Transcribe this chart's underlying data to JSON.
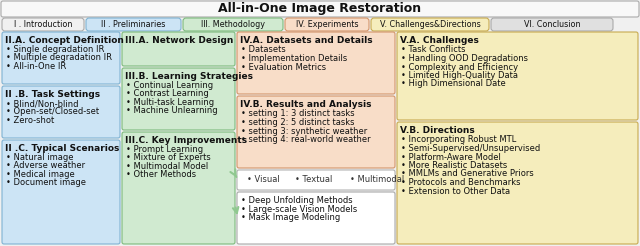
{
  "title": "All-in-One Image Restoration",
  "tabs": [
    {
      "label": "I . Introduction",
      "bg": "#f0f0f0",
      "border": "#aaaaaa"
    },
    {
      "label": "II . Preliminaries",
      "bg": "#cce4f5",
      "border": "#7fb3d3"
    },
    {
      "label": "III. Methodology",
      "bg": "#d0ead0",
      "border": "#7dbb7d"
    },
    {
      "label": "IV. Experiments",
      "bg": "#f8ddc8",
      "border": "#d4956a"
    },
    {
      "label": "V. Challenges&Directions",
      "bg": "#f5edbc",
      "border": "#c8aa50"
    },
    {
      "label": "VI. Conclusion",
      "bg": "#e0e0e0",
      "border": "#aaaaaa"
    }
  ],
  "col1_bg": "#cce4f5",
  "col1_border": "#7fb3d3",
  "col2_bg": "#d0ead0",
  "col2_border": "#7dbb7d",
  "col3_salmon_bg": "#f8ddc8",
  "col3_salmon_border": "#d4956a",
  "col3_white_bg": "#ffffff",
  "col3_white_border": "#aaaaaa",
  "col4_bg": "#f5edbc",
  "col4_border": "#c8aa50",
  "arrow_color": "#90c890",
  "section2a_title": "II.A. Concept Definition",
  "section2a_items": [
    "Single degradation IR",
    "Multiple degradation IR",
    "All-in-One IR"
  ],
  "section2b_title": "II .B. Task Settings",
  "section2b_items": [
    "Blind/Non-blind",
    "Open-set/Closed-set",
    "Zero-shot"
  ],
  "section2c_title": "II .C. Typical Scenarios",
  "section2c_items": [
    "Natural image",
    "Adverse weather",
    "Medical image",
    "Document image"
  ],
  "section3a_title": "III.A. Network Design",
  "section3b_title": "III.B. Learning Strategies",
  "section3b_items": [
    "Continual Learning",
    "Contrast Learning",
    "Multi-task Learning",
    "Machine Unlearning"
  ],
  "section3c_title": "III.C. Key Improvements",
  "section3c_items": [
    "Prompt Learning",
    "Mixture of Experts",
    "Multimodal Model",
    "Other Methods"
  ],
  "section4a_title": "IV.A. Datasets and Details",
  "section4a_items": [
    "Datasets",
    "Implementation Details",
    "Evaluation Metrics"
  ],
  "section4b_title": "IV.B. Results and Analysis",
  "section4b_items": [
    "setting 1: 3 distinct tasks",
    "setting 2: 5 distinct tasks",
    "setting 3: synthetic weather",
    "setting 4: real-world weather"
  ],
  "section4c_items": [
    "Visual",
    "Textual",
    "Multimodal"
  ],
  "section4d_items": [
    "Deep Unfolding Methods",
    "Large-scale Vision Models",
    "Mask Image Modeling"
  ],
  "section5a_title": "V.A. Challenges",
  "section5a_items": [
    "Task Conflicts",
    "Handling OOD Degradations",
    "Complexity and Efficiency",
    "Limited High-Quality Data",
    "High Dimensional Date"
  ],
  "section5b_title": "V.B. Directions",
  "section5b_items": [
    "Incorporating Robust MTL",
    "Semi-Supervised/Unsupervised",
    "Platform-Aware Model",
    "More Realistic Datasets",
    "MMLMs and Generative Priors",
    "Protocols and Benchmarks",
    "Extension to Other Data"
  ],
  "bg_color": "#f0f0f0"
}
